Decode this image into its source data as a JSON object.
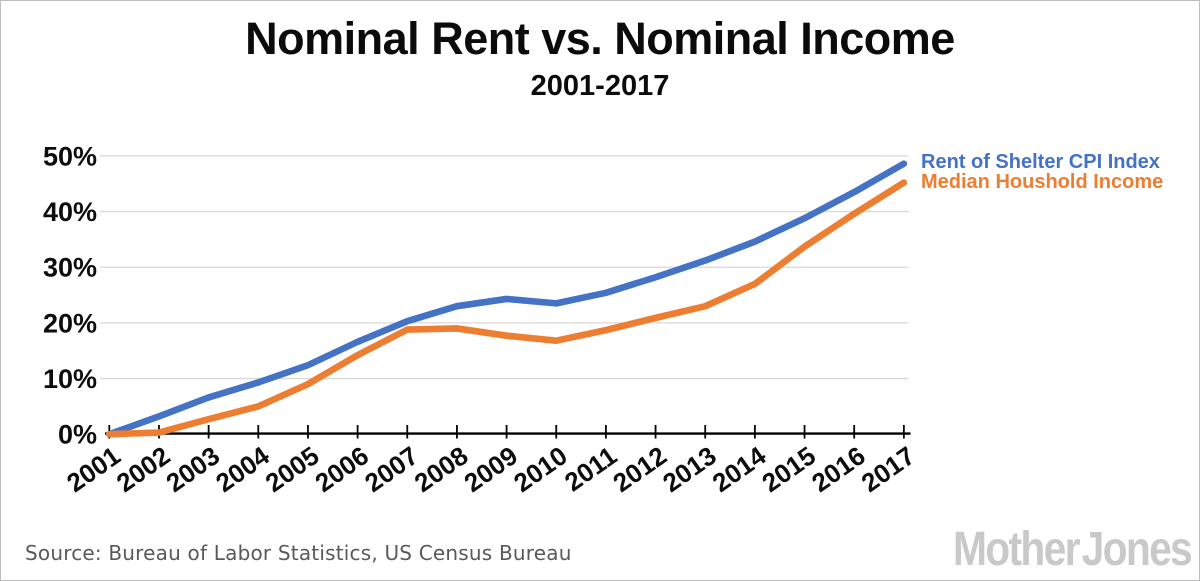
{
  "header": {
    "title": "Nominal Rent vs. Nominal Income",
    "subtitle": "2001-2017"
  },
  "legend": {
    "items": [
      {
        "label": "Rent of Shelter CPI Index",
        "color": "#4472C4"
      },
      {
        "label": "Median Houshold Income",
        "color": "#ED7D31"
      }
    ]
  },
  "footer": {
    "source": "Source: Bureau of Labor Statistics, US Census Bureau",
    "logo": "Mother Jones"
  },
  "chart_data": {
    "type": "line",
    "x": [
      2001,
      2002,
      2003,
      2004,
      2005,
      2006,
      2007,
      2008,
      2009,
      2010,
      2011,
      2012,
      2013,
      2014,
      2015,
      2016,
      2017
    ],
    "series": [
      {
        "id": "rent-cpi",
        "name": "Rent of Shelter CPI Index",
        "color": "#4472C4",
        "values": [
          0,
          3.2,
          6.6,
          9.3,
          12.4,
          16.6,
          20.3,
          23.0,
          24.3,
          23.5,
          25.4,
          28.2,
          31.2,
          34.6,
          38.8,
          43.5,
          48.6
        ]
      },
      {
        "id": "median-income",
        "name": "Median Houshold Income",
        "color": "#ED7D31",
        "values": [
          0,
          0.3,
          2.7,
          5.0,
          9.0,
          14.2,
          18.8,
          19.0,
          17.7,
          16.8,
          18.7,
          20.9,
          23.0,
          27.0,
          33.7,
          39.6,
          45.2
        ]
      }
    ],
    "ylabel_ticks": [
      "0%",
      "10%",
      "20%",
      "30%",
      "40%",
      "50%"
    ],
    "ylim": [
      0,
      50
    ],
    "grid": true,
    "gridline_color": "#D9D9D9",
    "axis_color": "#000000",
    "legend_position": "right",
    "title": "Nominal Rent vs. Nominal Income",
    "subtitle": "2001-2017"
  }
}
